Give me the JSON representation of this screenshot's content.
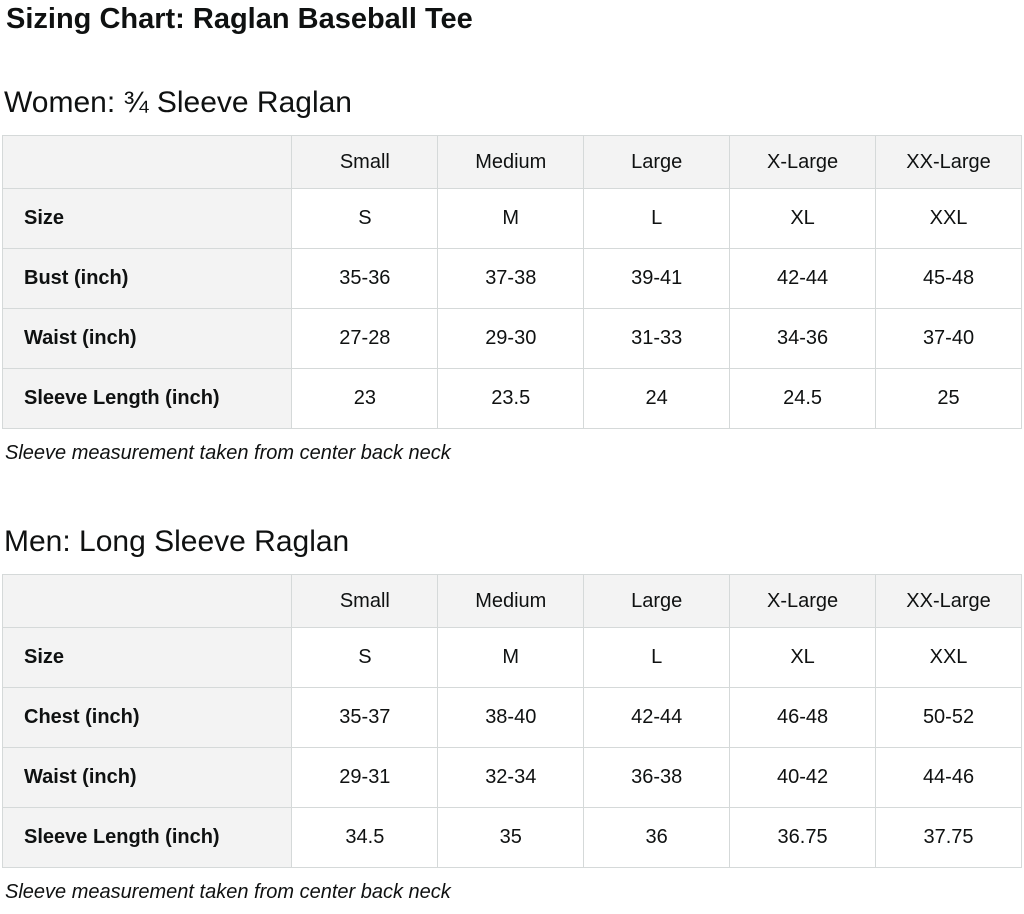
{
  "page": {
    "title": "Sizing Chart: Raglan Baseball Tee"
  },
  "colors": {
    "text": "#0f1111",
    "table_border": "#d5d9d9",
    "header_cell_bg": "#f3f3f3",
    "data_cell_bg": "#ffffff"
  },
  "sections": [
    {
      "heading": "Women: ¾ Sleeve Raglan",
      "columns": [
        "",
        "Small",
        "Medium",
        "Large",
        "X-Large",
        "XX-Large"
      ],
      "rows": [
        {
          "label": "Size",
          "values": [
            "S",
            "M",
            "L",
            "XL",
            "XXL"
          ]
        },
        {
          "label": "Bust (inch)",
          "values": [
            "35-36",
            "37-38",
            "39-41",
            "42-44",
            "45-48"
          ]
        },
        {
          "label": "Waist (inch)",
          "values": [
            "27-28",
            "29-30",
            "31-33",
            "34-36",
            "37-40"
          ]
        },
        {
          "label": "Sleeve Length (inch)",
          "values": [
            "23",
            "23.5",
            "24",
            "24.5",
            "25"
          ]
        }
      ],
      "note": "Sleeve measurement taken from center back neck"
    },
    {
      "heading": "Men: Long Sleeve Raglan",
      "columns": [
        "",
        "Small",
        "Medium",
        "Large",
        "X-Large",
        "XX-Large"
      ],
      "rows": [
        {
          "label": "Size",
          "values": [
            "S",
            "M",
            "L",
            "XL",
            "XXL"
          ]
        },
        {
          "label": "Chest (inch)",
          "values": [
            "35-37",
            "38-40",
            "42-44",
            "46-48",
            "50-52"
          ]
        },
        {
          "label": "Waist (inch)",
          "values": [
            "29-31",
            "32-34",
            "36-38",
            "40-42",
            "44-46"
          ]
        },
        {
          "label": "Sleeve Length (inch)",
          "values": [
            "34.5",
            "35",
            "36",
            "36.75",
            "37.75"
          ]
        }
      ],
      "note": "Sleeve measurement taken from center back neck"
    }
  ],
  "layout": {
    "label_col_width_pct": 28.4,
    "size_col_width_pct": 14.32
  }
}
